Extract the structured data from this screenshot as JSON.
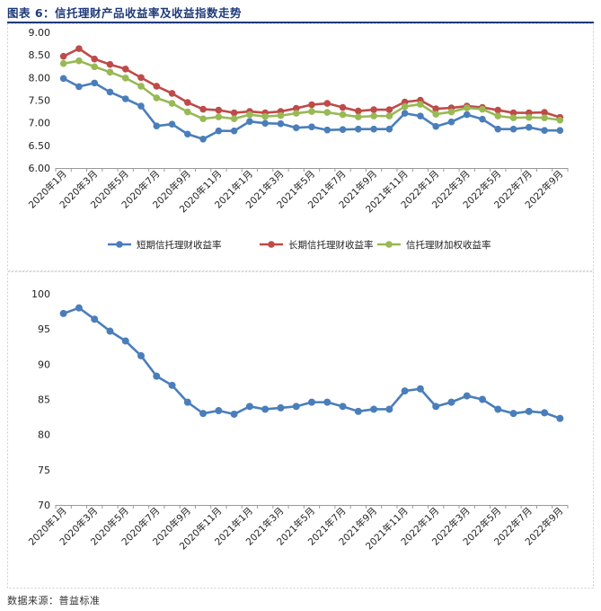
{
  "figure": {
    "title": "图表 6：信托理财产品收益率及收益指数走势",
    "source": "数据来源：普益标准"
  },
  "chart_data": [
    {
      "type": "line",
      "title": "",
      "xlabel": "",
      "ylabel": "",
      "ylim": [
        6.0,
        9.0
      ],
      "yticks": [
        6.0,
        6.5,
        7.0,
        7.5,
        8.0,
        8.5,
        9.0
      ],
      "ytick_labels": [
        "6.00",
        "6.50",
        "7.00",
        "7.50",
        "8.00",
        "8.50",
        "9.00"
      ],
      "legend_position": "bottom",
      "grid": false,
      "categories": [
        "2020年1月",
        "2020年2月",
        "2020年3月",
        "2020年4月",
        "2020年5月",
        "2020年6月",
        "2020年7月",
        "2020年8月",
        "2020年9月",
        "2020年10月",
        "2020年11月",
        "2020年12月",
        "2021年1月",
        "2021年2月",
        "2021年3月",
        "2021年4月",
        "2021年5月",
        "2021年6月",
        "2021年7月",
        "2021年8月",
        "2021年9月",
        "2021年10月",
        "2021年11月",
        "2021年12月",
        "2022年1月",
        "2022年2月",
        "2022年3月",
        "2022年4月",
        "2022年5月",
        "2022年6月",
        "2022年7月",
        "2022年8月",
        "2022年9月"
      ],
      "x_tick_labels": [
        "2020年1月",
        "2020年3月",
        "2020年5月",
        "2020年7月",
        "2020年9月",
        "2020年11月",
        "2021年1月",
        "2021年3月",
        "2021年5月",
        "2021年7月",
        "2021年9月",
        "2021年11月",
        "2022年1月",
        "2022年3月",
        "2022年5月",
        "2022年7月",
        "2022年9月"
      ],
      "series": [
        {
          "name": "短期信托理财收益率",
          "color": "#4a7ebb",
          "values": [
            7.98,
            7.8,
            7.88,
            7.68,
            7.53,
            7.37,
            6.93,
            6.97,
            6.75,
            6.64,
            6.82,
            6.82,
            7.03,
            6.99,
            6.98,
            6.89,
            6.91,
            6.84,
            6.85,
            6.86,
            6.86,
            6.86,
            7.21,
            7.15,
            6.92,
            7.02,
            7.18,
            7.08,
            6.86,
            6.86,
            6.9,
            6.83,
            6.83
          ]
        },
        {
          "name": "长期信托理财收益率",
          "color": "#be4b48",
          "values": [
            8.47,
            8.64,
            8.41,
            8.29,
            8.19,
            8.0,
            7.81,
            7.65,
            7.45,
            7.3,
            7.28,
            7.22,
            7.25,
            7.22,
            7.25,
            7.32,
            7.4,
            7.43,
            7.34,
            7.26,
            7.29,
            7.29,
            7.46,
            7.5,
            7.31,
            7.33,
            7.37,
            7.34,
            7.28,
            7.22,
            7.22,
            7.23,
            7.12
          ]
        },
        {
          "name": "信托理财加权收益率",
          "color": "#98b954",
          "values": [
            8.31,
            8.37,
            8.24,
            8.12,
            7.99,
            7.81,
            7.55,
            7.43,
            7.24,
            7.09,
            7.13,
            7.09,
            7.18,
            7.14,
            7.16,
            7.21,
            7.25,
            7.23,
            7.18,
            7.13,
            7.15,
            7.15,
            7.36,
            7.41,
            7.19,
            7.24,
            7.33,
            7.3,
            7.15,
            7.11,
            7.12,
            7.11,
            7.06
          ]
        }
      ]
    },
    {
      "type": "line",
      "title": "",
      "xlabel": "",
      "ylabel": "",
      "ylim": [
        70,
        100
      ],
      "yticks": [
        70,
        75,
        80,
        85,
        90,
        95,
        100
      ],
      "ytick_labels": [
        "70",
        "75",
        "80",
        "85",
        "90",
        "95",
        "100"
      ],
      "legend_position": "none",
      "grid": false,
      "categories": [
        "2020年1月",
        "2020年2月",
        "2020年3月",
        "2020年4月",
        "2020年5月",
        "2020年6月",
        "2020年7月",
        "2020年8月",
        "2020年9月",
        "2020年10月",
        "2020年11月",
        "2020年12月",
        "2021年1月",
        "2021年2月",
        "2021年3月",
        "2021年4月",
        "2021年5月",
        "2021年6月",
        "2021年7月",
        "2021年8月",
        "2021年9月",
        "2021年10月",
        "2021年11月",
        "2021年12月",
        "2022年1月",
        "2022年2月",
        "2022年3月",
        "2022年4月",
        "2022年5月",
        "2022年6月",
        "2022年7月",
        "2022年8月",
        "2022年9月"
      ],
      "x_tick_labels": [
        "2020年1月",
        "2020年3月",
        "2020年5月",
        "2020年7月",
        "2020年9月",
        "2020年11月",
        "2021年1月",
        "2021年3月",
        "2021年5月",
        "2021年7月",
        "2021年9月",
        "2021年11月",
        "2022年1月",
        "2022年3月",
        "2022年5月",
        "2022年7月",
        "2022年9月"
      ],
      "series": [
        {
          "name": "信托理财收益指数",
          "color": "#4a7ebb",
          "values": [
            97.2,
            98.0,
            96.4,
            94.7,
            93.3,
            91.2,
            88.3,
            87.0,
            84.6,
            83.0,
            83.4,
            82.9,
            84.0,
            83.6,
            83.8,
            84.0,
            84.6,
            84.6,
            84.0,
            83.3,
            83.6,
            83.6,
            86.2,
            86.5,
            84.0,
            84.6,
            85.5,
            85.0,
            83.6,
            83.0,
            83.3,
            83.1,
            82.3
          ]
        }
      ]
    }
  ]
}
